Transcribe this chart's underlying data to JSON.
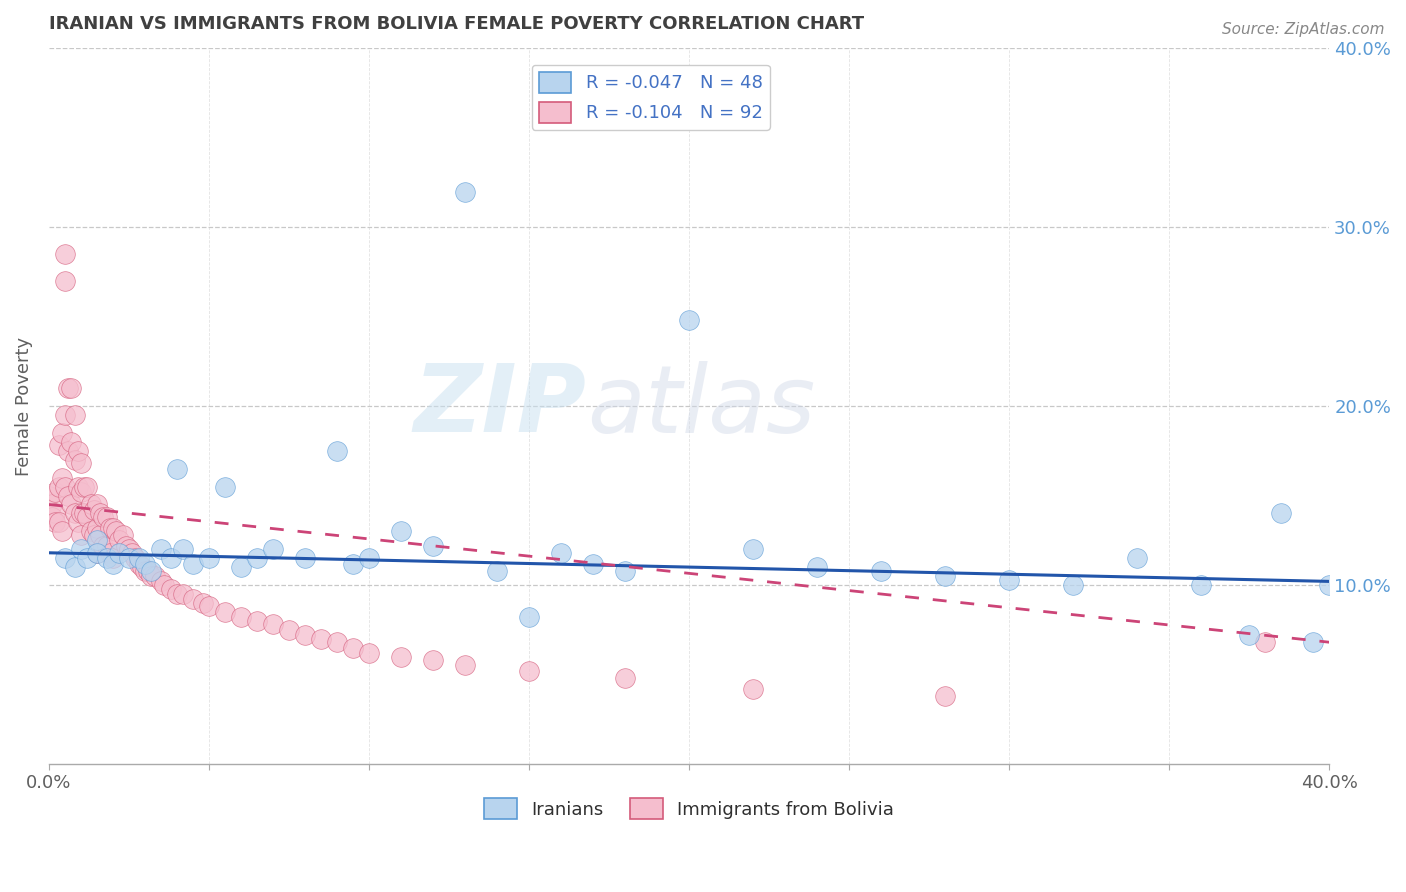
{
  "title": "IRANIAN VS IMMIGRANTS FROM BOLIVIA FEMALE POVERTY CORRELATION CHART",
  "source_text": "Source: ZipAtlas.com",
  "ylabel": "Female Poverty",
  "xlim": [
    0,
    0.4
  ],
  "ylim": [
    0,
    0.4
  ],
  "xtick_vals": [
    0.0,
    0.05,
    0.1,
    0.15,
    0.2,
    0.25,
    0.3,
    0.35,
    0.4
  ],
  "xtick_labels_outer": {
    "0.0": "0.0%",
    "0.40": "40.0%"
  },
  "ytick_vals": [
    0.0,
    0.1,
    0.2,
    0.3,
    0.4
  ],
  "ytick_labels_right": [
    "",
    "10.0%",
    "20.0%",
    "30.0%",
    "40.0%"
  ],
  "legend_entries": [
    {
      "label": "R = -0.047   N = 48",
      "color": "#b8d4ee"
    },
    {
      "label": "R = -0.104   N = 92",
      "color": "#f5bece"
    }
  ],
  "legend_bottom": [
    {
      "label": "Iranians",
      "color": "#b8d4ee"
    },
    {
      "label": "Immigrants from Bolivia",
      "color": "#f5bece"
    }
  ],
  "series_iranian": {
    "color": "#b8d4ee",
    "edge_color": "#5b9bd5",
    "x": [
      0.005,
      0.008,
      0.01,
      0.012,
      0.015,
      0.015,
      0.018,
      0.02,
      0.022,
      0.025,
      0.028,
      0.03,
      0.032,
      0.035,
      0.038,
      0.04,
      0.042,
      0.045,
      0.05,
      0.055,
      0.06,
      0.065,
      0.07,
      0.08,
      0.09,
      0.095,
      0.1,
      0.11,
      0.12,
      0.13,
      0.14,
      0.15,
      0.16,
      0.17,
      0.18,
      0.2,
      0.22,
      0.24,
      0.26,
      0.28,
      0.3,
      0.32,
      0.34,
      0.36,
      0.375,
      0.385,
      0.395,
      0.4
    ],
    "y": [
      0.115,
      0.11,
      0.12,
      0.115,
      0.125,
      0.118,
      0.115,
      0.112,
      0.118,
      0.115,
      0.115,
      0.112,
      0.108,
      0.12,
      0.115,
      0.165,
      0.12,
      0.112,
      0.115,
      0.155,
      0.11,
      0.115,
      0.12,
      0.115,
      0.175,
      0.112,
      0.115,
      0.13,
      0.122,
      0.32,
      0.108,
      0.082,
      0.118,
      0.112,
      0.108,
      0.248,
      0.12,
      0.11,
      0.108,
      0.105,
      0.103,
      0.1,
      0.115,
      0.1,
      0.072,
      0.14,
      0.068,
      0.1
    ]
  },
  "series_bolivia": {
    "color": "#f5bece",
    "edge_color": "#d45b7a",
    "x": [
      0.0,
      0.001,
      0.001,
      0.002,
      0.002,
      0.002,
      0.003,
      0.003,
      0.003,
      0.004,
      0.004,
      0.004,
      0.005,
      0.005,
      0.005,
      0.005,
      0.006,
      0.006,
      0.006,
      0.007,
      0.007,
      0.007,
      0.008,
      0.008,
      0.008,
      0.009,
      0.009,
      0.009,
      0.01,
      0.01,
      0.01,
      0.01,
      0.011,
      0.011,
      0.012,
      0.012,
      0.013,
      0.013,
      0.014,
      0.014,
      0.015,
      0.015,
      0.015,
      0.016,
      0.016,
      0.017,
      0.017,
      0.018,
      0.018,
      0.019,
      0.019,
      0.02,
      0.02,
      0.021,
      0.022,
      0.023,
      0.024,
      0.025,
      0.026,
      0.027,
      0.028,
      0.029,
      0.03,
      0.031,
      0.032,
      0.033,
      0.035,
      0.036,
      0.038,
      0.04,
      0.042,
      0.045,
      0.048,
      0.05,
      0.055,
      0.06,
      0.065,
      0.07,
      0.075,
      0.08,
      0.085,
      0.09,
      0.095,
      0.1,
      0.11,
      0.12,
      0.13,
      0.15,
      0.18,
      0.22,
      0.28,
      0.38
    ],
    "y": [
      0.15,
      0.145,
      0.138,
      0.152,
      0.14,
      0.135,
      0.178,
      0.155,
      0.135,
      0.185,
      0.16,
      0.13,
      0.285,
      0.27,
      0.195,
      0.155,
      0.21,
      0.175,
      0.15,
      0.21,
      0.18,
      0.145,
      0.195,
      0.17,
      0.14,
      0.175,
      0.155,
      0.135,
      0.168,
      0.152,
      0.14,
      0.128,
      0.155,
      0.14,
      0.155,
      0.138,
      0.145,
      0.13,
      0.142,
      0.128,
      0.145,
      0.132,
      0.118,
      0.14,
      0.128,
      0.138,
      0.122,
      0.138,
      0.122,
      0.132,
      0.118,
      0.132,
      0.115,
      0.13,
      0.125,
      0.128,
      0.122,
      0.12,
      0.118,
      0.115,
      0.112,
      0.11,
      0.108,
      0.108,
      0.105,
      0.105,
      0.102,
      0.1,
      0.098,
      0.095,
      0.095,
      0.092,
      0.09,
      0.088,
      0.085,
      0.082,
      0.08,
      0.078,
      0.075,
      0.072,
      0.07,
      0.068,
      0.065,
      0.062,
      0.06,
      0.058,
      0.055,
      0.052,
      0.048,
      0.042,
      0.038,
      0.068
    ]
  },
  "trendline_iranian": {
    "color": "#2255aa",
    "x_start": 0.0,
    "x_end": 0.4,
    "y_start": 0.118,
    "y_end": 0.102
  },
  "trendline_bolivia": {
    "color": "#cc4477",
    "x_start": 0.0,
    "x_end": 0.4,
    "y_start": 0.145,
    "y_end": 0.068
  },
  "watermark_zip": "ZIP",
  "watermark_atlas": "atlas",
  "background_color": "#ffffff",
  "grid_color": "#c8c8c8",
  "title_color": "#404040",
  "axis_label_color": "#606060",
  "tick_color": "#606060",
  "right_axis_color": "#5b9bd5"
}
